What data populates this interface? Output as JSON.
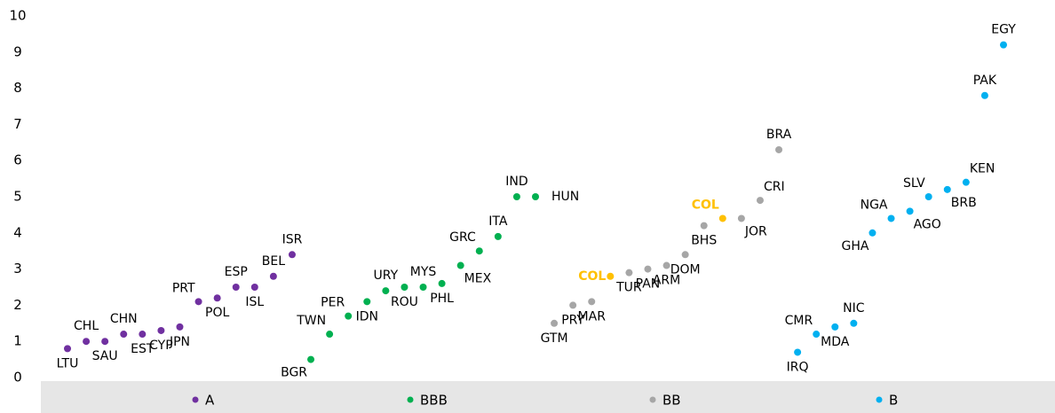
{
  "chart_data": {
    "type": "scatter",
    "ylim": [
      0,
      10
    ],
    "yticks": [
      0,
      1,
      2,
      3,
      4,
      5,
      6,
      7,
      8,
      9,
      10
    ],
    "highlight": "COL",
    "highlight_color": "#ffc000",
    "legend": "bottom",
    "series": [
      {
        "name": "A",
        "color": "#7030a0",
        "labels": [
          "LTU",
          "CHL",
          "SAU",
          "CHN",
          "EST",
          "CYP",
          "JPN",
          "PRT",
          "POL",
          "ESP",
          "ISL",
          "BEL",
          "ISR"
        ],
        "values": [
          0.8,
          1.0,
          1.0,
          1.2,
          1.2,
          1.3,
          1.4,
          2.1,
          2.2,
          2.5,
          2.5,
          2.8,
          3.4
        ]
      },
      {
        "name": "BBB",
        "color": "#00b050",
        "labels": [
          "BGR",
          "TWN",
          "PER",
          "IDN",
          "URY",
          "ROU",
          "MYS",
          "PHL",
          "MEX",
          "GRC",
          "ITA",
          "IND",
          "HUN"
        ],
        "values": [
          0.5,
          1.2,
          1.7,
          2.1,
          2.4,
          2.5,
          2.5,
          2.6,
          3.1,
          3.5,
          3.9,
          5.0,
          5.0
        ]
      },
      {
        "name": "BB",
        "color": "#a6a6a6",
        "labels": [
          "GTM",
          "PRY",
          "MAR",
          "COL",
          "TUR",
          "PAN",
          "ARM",
          "DOM",
          "BHS",
          "COL",
          "JOR",
          "CRI",
          "BRA"
        ],
        "values": [
          1.5,
          2.0,
          2.1,
          2.8,
          2.9,
          3.0,
          3.1,
          3.4,
          4.2,
          4.4,
          4.4,
          4.9,
          6.3
        ]
      },
      {
        "name": "B",
        "color": "#00b0f0",
        "labels": [
          "IRQ",
          "CMR",
          "MDA",
          "NIC",
          "GHA",
          "NGA",
          "AGO",
          "SLV",
          "BRB",
          "KEN",
          "PAK",
          "EGY"
        ],
        "values": [
          0.7,
          1.2,
          1.4,
          1.5,
          4.0,
          4.4,
          4.6,
          5.0,
          5.2,
          5.4,
          7.8,
          9.2
        ]
      }
    ]
  }
}
